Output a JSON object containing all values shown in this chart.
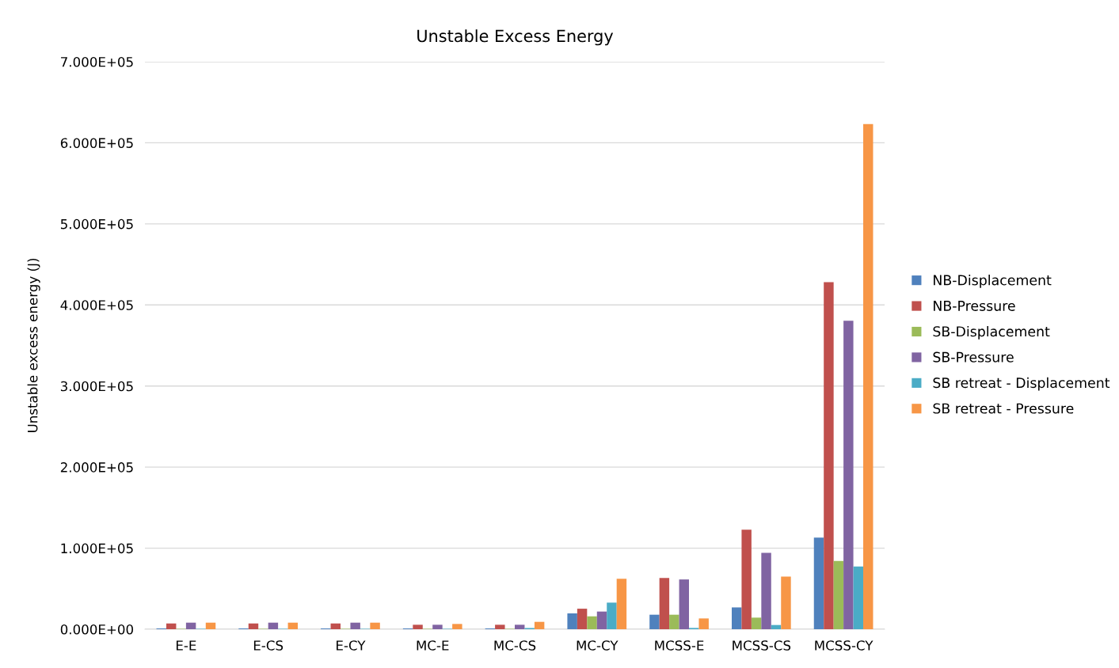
{
  "chart_data": {
    "type": "bar",
    "title": "Unstable Excess Energy",
    "ylabel": "Unstable excess energy (J)",
    "categories": [
      "E-E",
      "E-CS",
      "E-CY",
      "MC-E",
      "MC-CS",
      "MC-CY",
      "MCSS-E",
      "MCSS-CS",
      "MCSS-CY"
    ],
    "series": [
      {
        "name": "NB-Displacement",
        "color": "#4f81bd",
        "values": [
          1000,
          1000,
          1000,
          1000,
          1000,
          19500,
          17900,
          26900,
          113000
        ]
      },
      {
        "name": "NB-Pressure",
        "color": "#c0504d",
        "values": [
          7100,
          7100,
          7100,
          5500,
          5500,
          25300,
          63300,
          122700,
          428000
        ]
      },
      {
        "name": "SB-Displacement",
        "color": "#9bbb59",
        "values": [
          500,
          500,
          500,
          500,
          500,
          15900,
          17900,
          14300,
          84100
        ]
      },
      {
        "name": "SB-Pressure",
        "color": "#8064a2",
        "values": [
          8100,
          8100,
          8100,
          5500,
          5500,
          21800,
          61400,
          94200,
          380500
        ]
      },
      {
        "name": "SB retreat - Displacement",
        "color": "#4bacc6",
        "values": [
          500,
          500,
          500,
          500,
          1500,
          32800,
          1600,
          5200,
          77300
        ]
      },
      {
        "name": "SB retreat - Pressure",
        "color": "#f79646",
        "values": [
          8100,
          8100,
          8100,
          6500,
          9100,
          62300,
          13300,
          64900,
          623000
        ]
      }
    ],
    "ylim": [
      0,
      700000
    ],
    "yticks": [
      {
        "value": 0,
        "label": "0.000E+00"
      },
      {
        "value": 100000,
        "label": "1.000E+05"
      },
      {
        "value": 200000,
        "label": "2.000E+05"
      },
      {
        "value": 300000,
        "label": "3.000E+05"
      },
      {
        "value": 400000,
        "label": "4.000E+05"
      },
      {
        "value": 500000,
        "label": "5.000E+05"
      },
      {
        "value": 600000,
        "label": "6.000E+05"
      },
      {
        "value": 700000,
        "label": "7.000E+05"
      }
    ],
    "grid": "y",
    "legend": "right"
  }
}
